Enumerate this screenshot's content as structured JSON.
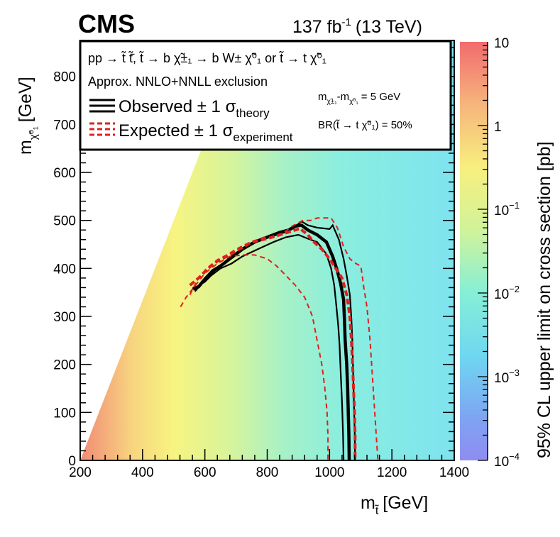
{
  "header": {
    "experiment": "CMS",
    "luminosity": "137 fb",
    "luminosity_exp": "-1",
    "energy": "(13 TeV)"
  },
  "legend": {
    "process_prefix": "pp → ",
    "process_text": "t̃ t̃̄, t̃ → b χ̃±₁ → b W± χ̃⁰₁ or t̃ → t χ̃⁰₁",
    "exclusion": "Approx. NNLO+NNLL exclusion",
    "observed": "Observed ± 1 σ",
    "observed_sub": "theory",
    "expected": "Expected ± 1 σ",
    "expected_sub": "experiment",
    "mass_diff": "m",
    "mass_diff_text": "-m",
    "mass_diff_value": "= 5 GeV",
    "branching": "BR(t̃ → t χ̃⁰₁) = 50%"
  },
  "colors": {
    "observed": "#000000",
    "expected": "#e0201c",
    "frame": "#000000"
  },
  "chart_data": {
    "type": "heatmap",
    "xlabel": "m",
    "xlabel_sub": "t̃",
    "xlabel_unit": "[GeV]",
    "ylabel": "m",
    "ylabel_sub": "χ̃⁰₁",
    "ylabel_unit": "[GeV]",
    "zlabel": "95% CL upper limit on cross section [pb]",
    "xlim": [
      200,
      1400
    ],
    "ylim": [
      0,
      875
    ],
    "zlim": [
      0.0001,
      10
    ],
    "zscale": "log",
    "x_ticks": [
      200,
      400,
      600,
      800,
      1000,
      1200,
      1400
    ],
    "x_tick_labels": [
      "200",
      "400",
      "600",
      "800",
      "1000",
      "1200",
      "1400"
    ],
    "y_ticks": [
      0,
      100,
      200,
      300,
      400,
      500,
      600,
      700,
      800
    ],
    "y_tick_labels": [
      "0",
      "100",
      "200",
      "300",
      "400",
      "500",
      "600",
      "700",
      "800"
    ],
    "z_ticks": [
      10,
      1,
      0.1,
      0.01,
      0.001,
      0.0001
    ],
    "z_tick_labels": [
      {
        "base": "10",
        "exp": ""
      },
      {
        "base": "1",
        "exp": ""
      },
      {
        "base": "10",
        "exp": "−1"
      },
      {
        "base": "10",
        "exp": "−2"
      },
      {
        "base": "10",
        "exp": "−3"
      },
      {
        "base": "10",
        "exp": "−4"
      }
    ],
    "series": [
      {
        "style": "observed-central",
        "points": [
          [
            562,
            357
          ],
          [
            580,
            362
          ],
          [
            600,
            378
          ],
          [
            625,
            395
          ],
          [
            650,
            405
          ],
          [
            680,
            420
          ],
          [
            720,
            440
          ],
          [
            760,
            455
          ],
          [
            800,
            465
          ],
          [
            840,
            475
          ],
          [
            870,
            480
          ],
          [
            890,
            488
          ],
          [
            910,
            490
          ],
          [
            930,
            480
          ],
          [
            960,
            470
          ],
          [
            990,
            455
          ],
          [
            1010,
            425
          ],
          [
            1025,
            395
          ],
          [
            1035,
            370
          ],
          [
            1045,
            335
          ],
          [
            1048,
            290
          ],
          [
            1050,
            250
          ],
          [
            1055,
            200
          ],
          [
            1058,
            150
          ],
          [
            1060,
            100
          ],
          [
            1062,
            50
          ],
          [
            1063,
            0
          ]
        ]
      },
      {
        "style": "observed-band",
        "points": [
          [
            568,
            352
          ],
          [
            590,
            368
          ],
          [
            615,
            385
          ],
          [
            640,
            400
          ],
          [
            660,
            410
          ],
          [
            700,
            432
          ],
          [
            740,
            448
          ],
          [
            780,
            460
          ],
          [
            820,
            468
          ],
          [
            860,
            476
          ],
          [
            895,
            490
          ],
          [
            910,
            498
          ],
          [
            930,
            490
          ],
          [
            960,
            485
          ],
          [
            1000,
            482
          ],
          [
            1010,
            490
          ],
          [
            1030,
            460
          ],
          [
            1045,
            420
          ],
          [
            1055,
            385
          ],
          [
            1065,
            345
          ],
          [
            1070,
            295
          ],
          [
            1073,
            250
          ],
          [
            1075,
            200
          ],
          [
            1077,
            150
          ],
          [
            1079,
            100
          ],
          [
            1081,
            50
          ],
          [
            1082,
            0
          ]
        ]
      },
      {
        "style": "observed-band",
        "points": [
          [
            560,
            358
          ],
          [
            575,
            362
          ],
          [
            600,
            372
          ],
          [
            620,
            385
          ],
          [
            650,
            400
          ],
          [
            685,
            410
          ],
          [
            720,
            425
          ],
          [
            770,
            440
          ],
          [
            820,
            455
          ],
          [
            860,
            465
          ],
          [
            900,
            470
          ],
          [
            930,
            462
          ],
          [
            960,
            455
          ],
          [
            990,
            430
          ],
          [
            1005,
            400
          ],
          [
            1015,
            365
          ],
          [
            1022,
            320
          ],
          [
            1028,
            280
          ],
          [
            1032,
            240
          ],
          [
            1036,
            180
          ],
          [
            1040,
            120
          ],
          [
            1043,
            60
          ],
          [
            1045,
            0
          ]
        ]
      },
      {
        "style": "expected-central",
        "points": [
          [
            552,
            365
          ],
          [
            580,
            380
          ],
          [
            610,
            400
          ],
          [
            640,
            415
          ],
          [
            670,
            425
          ],
          [
            710,
            440
          ],
          [
            750,
            455
          ],
          [
            800,
            462
          ],
          [
            850,
            472
          ],
          [
            880,
            478
          ],
          [
            905,
            483
          ],
          [
            930,
            470
          ],
          [
            950,
            455
          ],
          [
            975,
            440
          ],
          [
            1000,
            420
          ],
          [
            1020,
            400
          ],
          [
            1040,
            380
          ],
          [
            1055,
            345
          ],
          [
            1065,
            300
          ],
          [
            1070,
            250
          ],
          [
            1074,
            200
          ],
          [
            1077,
            150
          ],
          [
            1080,
            100
          ],
          [
            1082,
            50
          ],
          [
            1082,
            0
          ]
        ]
      },
      {
        "style": "expected-band",
        "points": [
          [
            552,
            345
          ],
          [
            575,
            375
          ],
          [
            605,
            400
          ],
          [
            640,
            418
          ],
          [
            670,
            428
          ],
          [
            700,
            440
          ],
          [
            730,
            450
          ],
          [
            760,
            458
          ],
          [
            790,
            465
          ],
          [
            830,
            465
          ],
          [
            860,
            478
          ],
          [
            880,
            488
          ],
          [
            915,
            500
          ],
          [
            940,
            500
          ],
          [
            960,
            505
          ],
          [
            985,
            505
          ],
          [
            1005,
            505
          ],
          [
            1025,
            485
          ],
          [
            1045,
            445
          ],
          [
            1065,
            420
          ],
          [
            1085,
            410
          ],
          [
            1100,
            405
          ],
          [
            1105,
            385
          ],
          [
            1110,
            360
          ],
          [
            1120,
            320
          ],
          [
            1130,
            250
          ],
          [
            1140,
            150
          ],
          [
            1150,
            50
          ],
          [
            1155,
            0
          ]
        ]
      },
      {
        "style": "expected-band",
        "points": [
          [
            522,
            320
          ],
          [
            540,
            340
          ],
          [
            570,
            365
          ],
          [
            600,
            390
          ],
          [
            640,
            410
          ],
          [
            680,
            425
          ],
          [
            720,
            428
          ],
          [
            760,
            428
          ],
          [
            800,
            420
          ],
          [
            830,
            405
          ],
          [
            860,
            385
          ],
          [
            890,
            365
          ],
          [
            920,
            340
          ],
          [
            945,
            300
          ],
          [
            960,
            250
          ],
          [
            975,
            200
          ],
          [
            985,
            150
          ],
          [
            992,
            100
          ],
          [
            995,
            50
          ],
          [
            995,
            0
          ]
        ]
      }
    ]
  }
}
